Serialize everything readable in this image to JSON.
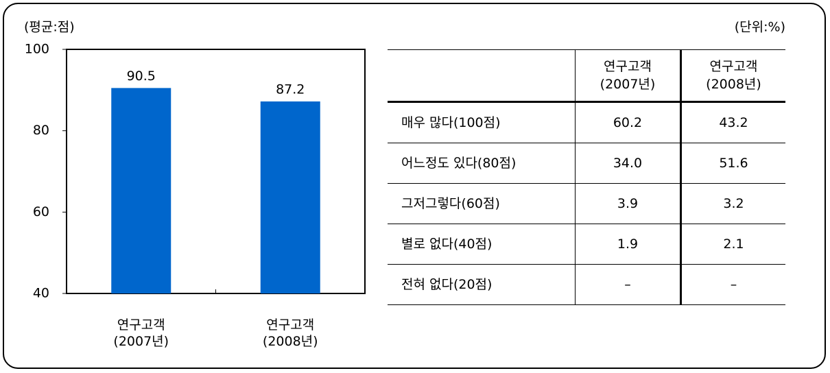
{
  "chart_data": {
    "type": "bar",
    "ylabel": "(평균:점)",
    "categories": [
      "연구고객\n(2007년)",
      "연구고객\n(2008년)"
    ],
    "values": [
      90.5,
      87.2
    ],
    "color": "#0066cc",
    "ylim": [
      40,
      100
    ],
    "yticks": [
      40,
      60,
      80,
      100
    ],
    "grid": false
  },
  "table": {
    "unit": "(단위:%)",
    "header": [
      "",
      "연구고객\n(2007년)",
      "연구고객\n(2008년)"
    ],
    "rows": [
      [
        "매우 많다(100점)",
        "60.2",
        "43.2"
      ],
      [
        "어느정도 있다(80점)",
        "34.0",
        "51.6"
      ],
      [
        "그저그렇다(60점)",
        "3.9",
        "3.2"
      ],
      [
        "별로 없다(40점)",
        "1.9",
        "2.1"
      ],
      [
        "전혀 없다(20점)",
        "–",
        "–"
      ]
    ]
  }
}
